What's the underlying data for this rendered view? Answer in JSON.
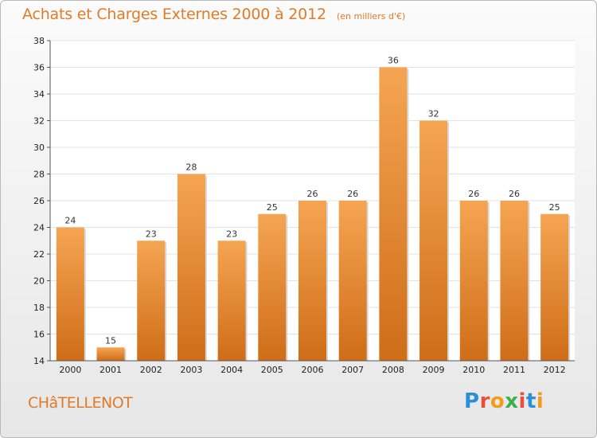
{
  "chart_data": {
    "type": "bar",
    "title": "Achats et Charges Externes 2000 à 2012",
    "subtitle": "(en milliers d'€)",
    "categories": [
      "2000",
      "2001",
      "2002",
      "2003",
      "2004",
      "2005",
      "2006",
      "2007",
      "2008",
      "2009",
      "2010",
      "2011",
      "2012"
    ],
    "values": [
      24,
      15,
      23,
      28,
      23,
      25,
      26,
      26,
      36,
      32,
      26,
      26,
      25
    ],
    "ylim": [
      14,
      38
    ],
    "yticks": [
      14,
      16,
      18,
      20,
      22,
      24,
      26,
      28,
      30,
      32,
      34,
      36,
      38
    ],
    "grid": true,
    "bar_color_top": "#f5a552",
    "bar_color_bottom": "#cf6d18",
    "xlabel": "",
    "ylabel": ""
  },
  "footer": {
    "commune": "CHâTELLENOT",
    "logo_letters": [
      "P",
      "r",
      "o",
      "x",
      "i",
      "t",
      "i"
    ],
    "logo_colors": [
      "#2c8fd6",
      "#e8503a",
      "#f29b1d",
      "#3db048",
      "#e8503a",
      "#2c8fd6",
      "#f29b1d"
    ]
  },
  "colors": {
    "accent": "#e07b27",
    "grid": "#e2e2e2"
  }
}
